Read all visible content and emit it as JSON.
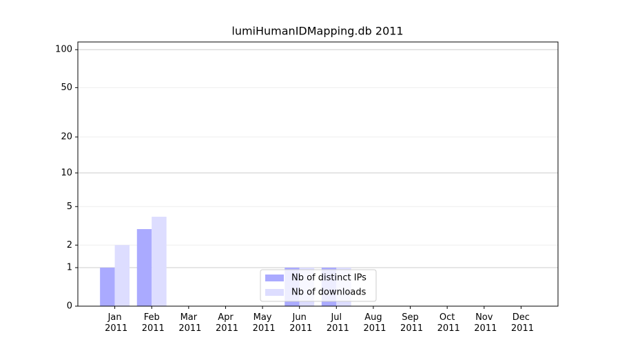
{
  "chart_data": {
    "type": "bar",
    "title": "lumiHumanIDMapping.db 2011",
    "categories": [
      "Jan 2011",
      "Feb 2011",
      "Mar 2011",
      "Apr 2011",
      "May 2011",
      "Jun 2011",
      "Jul 2011",
      "Aug 2011",
      "Sep 2011",
      "Oct 2011",
      "Nov 2011",
      "Dec 2011"
    ],
    "series": [
      {
        "name": "Nb of distinct IPs",
        "color": "#aaaaff",
        "values": [
          1,
          3,
          0,
          0,
          0,
          1,
          1,
          0,
          0,
          0,
          0,
          0
        ]
      },
      {
        "name": "Nb of downloads",
        "color": "#ddddff",
        "values": [
          2,
          4,
          0,
          0,
          0,
          1,
          1,
          0,
          0,
          0,
          0,
          0
        ]
      }
    ],
    "yscale": "log1p",
    "ylim": [
      0,
      115
    ],
    "yticks": [
      0,
      1,
      2,
      5,
      10,
      20,
      50,
      100
    ],
    "grid": true,
    "legend": "lower center"
  }
}
